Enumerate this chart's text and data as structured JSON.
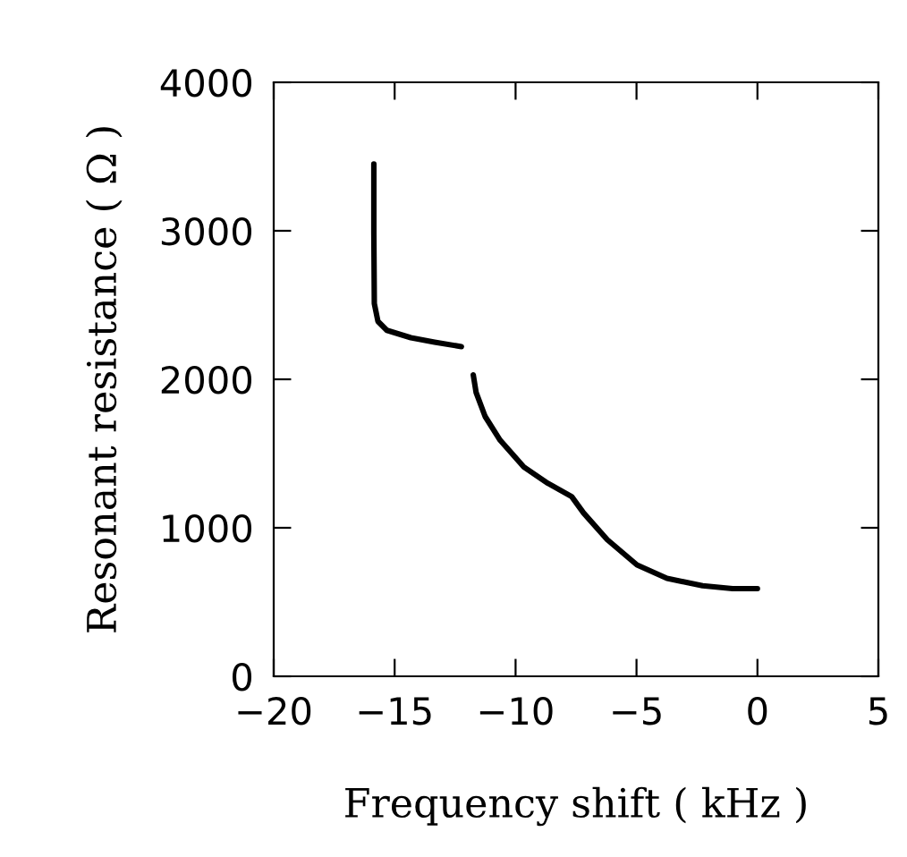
{
  "chart_data": {
    "type": "line",
    "xlabel": "Frequency shift ( kHz )",
    "ylabel": "Resonant resistance ( Ω )",
    "series": [
      {
        "color": "#000000",
        "x": [
          -15.86,
          -15.86,
          -15.84,
          -15.69,
          -15.32,
          -14.33,
          -13.35,
          -12.24,
          null,
          -11.75,
          -11.63,
          -11.26,
          -10.64,
          -9.66,
          -8.67,
          -7.68,
          -7.19,
          -6.21,
          -4.98,
          -3.74,
          -2.27,
          -1.03,
          0
        ],
        "values": [
          3450,
          2990,
          2510,
          2390,
          2330,
          2280,
          2250,
          2220,
          null,
          2030,
          1910,
          1750,
          1590,
          1410,
          1300,
          1210,
          1100,
          920,
          750,
          660,
          610,
          590,
          590
        ]
      }
    ],
    "xlim": [
      -20,
      5
    ],
    "xticks": [
      -20,
      -15,
      -10,
      -5,
      0,
      5
    ],
    "ylim": [
      0,
      4000
    ],
    "yticks": [
      0,
      1000,
      2000,
      3000,
      4000
    ],
    "grid": false,
    "legend": false,
    "marker": "none",
    "line_style": "solid"
  }
}
